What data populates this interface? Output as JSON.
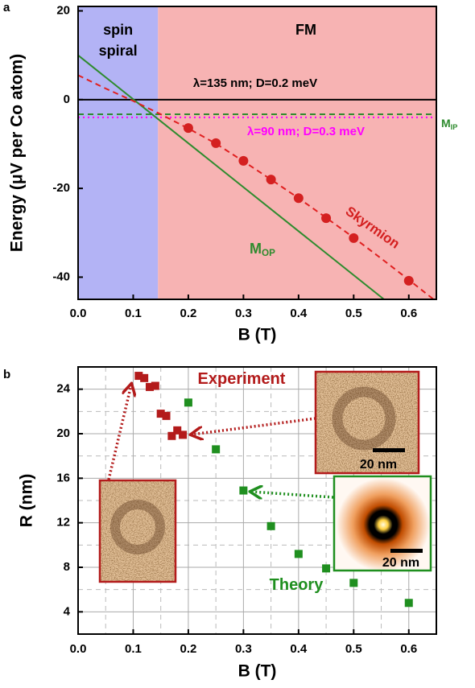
{
  "chart_data": [
    {
      "type": "line",
      "panel": "a",
      "xlabel": "B (T)",
      "ylabel": "Energy (μV per Co atom)",
      "xlim": [
        0,
        0.65
      ],
      "ylim": [
        -45,
        21
      ],
      "xticks": [
        {
          "value": 0,
          "label": "0.0"
        },
        0.1,
        0.2,
        0.3,
        0.4,
        0.5,
        0.6
      ],
      "yticks": [
        -40,
        -20,
        0,
        20
      ],
      "grid": false,
      "regions": [
        {
          "label": "spin spiral",
          "range": [
            0,
            0.145
          ],
          "color": "#b3b3f5"
        },
        {
          "label": "FM",
          "range": [
            0.145,
            0.65
          ],
          "color": "#f7b3b3"
        }
      ],
      "series": [
        {
          "name": "λ=135 nm; D=0.2 meV",
          "color": "#000000",
          "mode": "line",
          "dash": "solid",
          "x": [
            0,
            0.65
          ],
          "values": [
            0,
            0
          ]
        },
        {
          "name": "M",
          "name_sub": "IP",
          "color": "#2e8b2e",
          "mode": "line",
          "dash": "dashed",
          "x": [
            0,
            0.65
          ],
          "values": [
            -3.3,
            -3.3
          ]
        },
        {
          "name": "λ=90 nm; D=0.3 meV",
          "color": "#ff00ff",
          "mode": "line",
          "dash": "dotted",
          "x": [
            0,
            0.65
          ],
          "values": [
            -4,
            -4
          ]
        },
        {
          "name": "M",
          "name_sub": "OP",
          "color": "#2e8b2e",
          "mode": "line",
          "dash": "solid",
          "x": [
            0,
            0.555
          ],
          "values": [
            10,
            -45
          ]
        },
        {
          "color": "#e02020",
          "mode": "line",
          "dash": "dashed",
          "x": [
            0,
            0.05,
            0.1,
            0.15,
            0.2,
            0.25,
            0.3,
            0.35,
            0.4,
            0.45,
            0.5,
            0.55,
            0.6,
            0.65
          ],
          "values": [
            5.5,
            2.5,
            -0.3,
            -3.3,
            -6.5,
            -9.9,
            -13.9,
            -18,
            -22.2,
            -26.6,
            -31.1,
            -35.8,
            -40.6,
            -45.5
          ]
        },
        {
          "name": "Skyrmion",
          "color": "#d42020",
          "mode": "markers",
          "marker": "circle",
          "x": [
            0.2,
            0.25,
            0.3,
            0.35,
            0.4,
            0.45,
            0.5,
            0.6
          ],
          "values": [
            -6.4,
            -9.8,
            -13.8,
            -18,
            -22.2,
            -26.7,
            -31.2,
            -40.8
          ]
        }
      ]
    },
    {
      "type": "scatter",
      "panel": "b",
      "xlabel": "B (T)",
      "ylabel": "R (nm)",
      "xlim": [
        0,
        0.65
      ],
      "ylim": [
        2,
        26
      ],
      "xticks": [
        {
          "value": 0,
          "label": "0.0"
        },
        0.1,
        0.2,
        0.3,
        0.4,
        0.5,
        0.6
      ],
      "yticks": [
        4,
        8,
        12,
        16,
        20,
        24
      ],
      "grid": true,
      "xminorticks": [
        0.05,
        0.15,
        0.25,
        0.35,
        0.45,
        0.55
      ],
      "yminorticks": [
        6,
        10,
        14,
        18,
        22
      ],
      "series": [
        {
          "name": "Experiment",
          "color": "#b31b1b",
          "mode": "markers",
          "marker": "square",
          "x": [
            0.11,
            0.12,
            0.13,
            0.14,
            0.15,
            0.16,
            0.17,
            0.18,
            0.19
          ],
          "values": [
            25.2,
            25.0,
            24.2,
            24.3,
            21.8,
            21.6,
            19.8,
            20.3,
            19.9
          ]
        },
        {
          "name": "Theory",
          "color": "#1f8f1f",
          "mode": "markers",
          "marker": "square",
          "x": [
            0.2,
            0.25,
            0.3,
            0.35,
            0.4,
            0.45,
            0.5,
            0.6
          ],
          "values": [
            22.8,
            18.6,
            14.9,
            11.7,
            9.2,
            7.9,
            6.6,
            4.8
          ]
        }
      ],
      "insets": [
        {
          "scale_label": "20 nm"
        },
        {
          "scale_label": "20 nm"
        }
      ]
    }
  ]
}
